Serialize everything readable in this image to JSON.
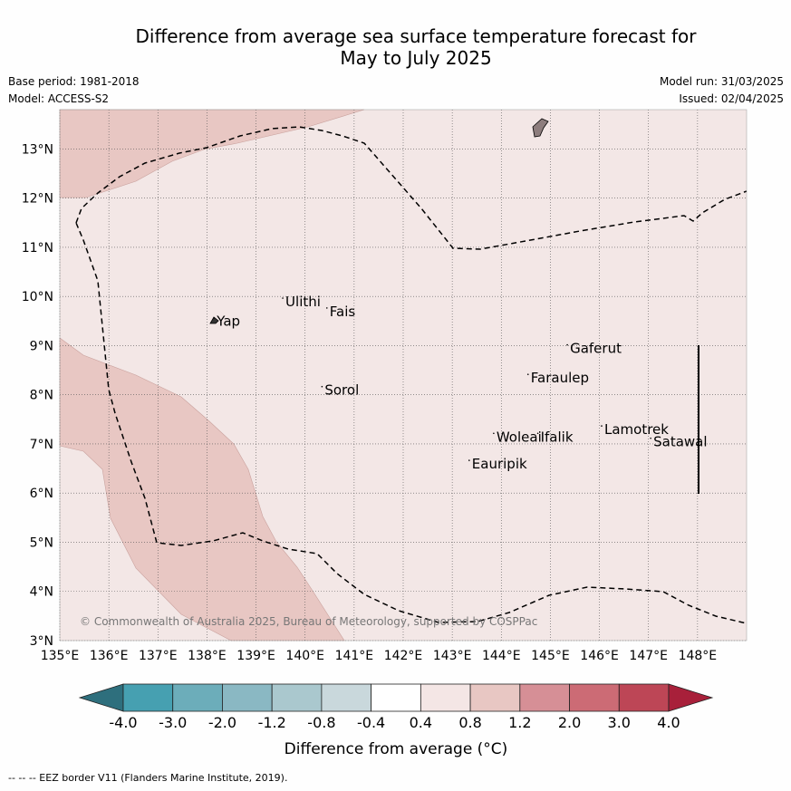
{
  "title_line1": "Difference from average sea surface temperature forecast for",
  "title_line2": "May to July 2025",
  "base_period": "Base period: 1981-2018",
  "model": "Model: ACCESS-S2",
  "model_run": "Model run: 31/03/2025",
  "issued": "Issued: 02/04/2025",
  "copyright": "© Commonwealth of Australia 2025, Bureau of Meteorology, supported by COSPPac",
  "footer_note": "--  --  -- EEZ border V11 (Flanders Marine Institute, 2019).",
  "map": {
    "lon_range": [
      135,
      149
    ],
    "lat_range": [
      3,
      13.8
    ],
    "lon_ticks": [
      "135°E",
      "136°E",
      "137°E",
      "138°E",
      "139°E",
      "140°E",
      "141°E",
      "142°E",
      "143°E",
      "144°E",
      "145°E",
      "146°E",
      "147°E",
      "148°E"
    ],
    "lat_ticks": [
      "3°N",
      "4°N",
      "5°N",
      "6°N",
      "7°N",
      "8°N",
      "9°N",
      "10°N",
      "11°N",
      "12°N",
      "13°N"
    ],
    "background_color": "#f3e7e6",
    "anomaly_color": "#e8c7c3",
    "anomaly_category": "0.8 to 1.2",
    "background_category": "0.4 to 0.8",
    "places": [
      {
        "name": "Yap",
        "lon": 138.2,
        "lat": 9.4
      },
      {
        "name": "Ulithi",
        "lon": 139.6,
        "lat": 9.8
      },
      {
        "name": "Fais",
        "lon": 140.5,
        "lat": 9.6
      },
      {
        "name": "Sorol",
        "lon": 140.4,
        "lat": 8.0
      },
      {
        "name": "Gaferut",
        "lon": 145.4,
        "lat": 8.85
      },
      {
        "name": "Faraulep",
        "lon": 144.6,
        "lat": 8.25
      },
      {
        "name": "Woleai",
        "lon": 143.9,
        "lat": 7.05
      },
      {
        "name": "Ifalik",
        "lon": 144.8,
        "lat": 7.05
      },
      {
        "name": "Lamotrek",
        "lon": 146.1,
        "lat": 7.2
      },
      {
        "name": "Satawal",
        "lon": 147.1,
        "lat": 6.95
      },
      {
        "name": "Eauripik",
        "lon": 143.4,
        "lat": 6.5
      }
    ]
  },
  "colorbar": {
    "label": "Difference from average (°C)",
    "tick_labels": [
      "-4.0",
      "-3.0",
      "-2.0",
      "-1.2",
      "-0.8",
      "-0.4",
      "0.4",
      "0.8",
      "1.2",
      "2.0",
      "3.0",
      "4.0"
    ],
    "colors": [
      "#2e6f7d",
      "#46a0b1",
      "#6cadba",
      "#8ab8c3",
      "#aac8ce",
      "#c9d8dc",
      "#ffffff",
      "#f4e6e5",
      "#e8c7c3",
      "#d68f96",
      "#cc6b75",
      "#bd4656",
      "#a8203a"
    ]
  }
}
